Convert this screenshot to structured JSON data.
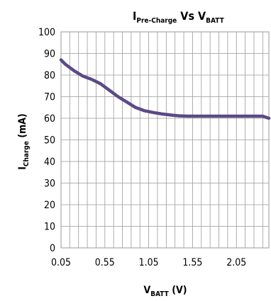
{
  "chart_data": {
    "type": "line",
    "title": {
      "main": "I",
      "sub": "Pre-Charge",
      "mid": " Vs  V",
      "sub2": "BATT"
    },
    "xlabel": {
      "main": "V",
      "sub": "BATT",
      "rest": " (V)"
    },
    "ylabel": {
      "main": "I",
      "sub": "Charge",
      "rest": " (mA)"
    },
    "xlim": [
      0.05,
      2.42
    ],
    "ylim": [
      0,
      100
    ],
    "x_ticks": [
      0.05,
      0.55,
      1.05,
      1.55,
      2.05
    ],
    "x_tick_labels": [
      "0.05",
      "0.55",
      "1.05",
      "1.55",
      "2.05"
    ],
    "y_ticks": [
      0,
      10,
      20,
      30,
      40,
      50,
      60,
      70,
      80,
      90,
      100
    ],
    "y_tick_labels": [
      "0",
      "10",
      "20",
      "30",
      "40",
      "50",
      "60",
      "70",
      "80",
      "90",
      "100"
    ],
    "grid": true,
    "series": [
      {
        "color": "#5b4a86",
        "x": [
          0.05,
          0.1,
          0.2,
          0.3,
          0.4,
          0.5,
          0.6,
          0.7,
          0.8,
          0.9,
          1.0,
          1.1,
          1.2,
          1.3,
          1.4,
          1.5,
          1.6,
          1.8,
          2.0,
          2.2,
          2.35,
          2.42
        ],
        "y": [
          87,
          85,
          82,
          79.5,
          78,
          76,
          73,
          70,
          67.5,
          65,
          63.5,
          62.7,
          62,
          61.5,
          61.1,
          61,
          61,
          61,
          61,
          61,
          61,
          60
        ]
      }
    ]
  }
}
